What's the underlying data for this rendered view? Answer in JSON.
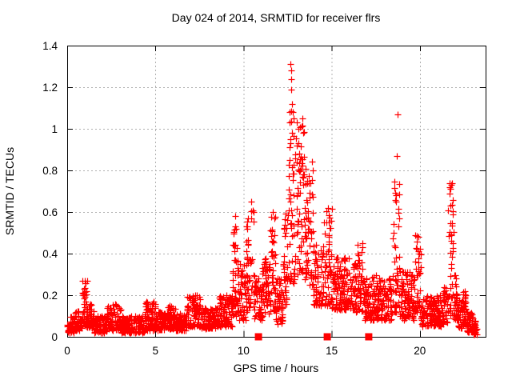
{
  "figure": {
    "title": "Day 024 of 2014, SRMTID for receiver flrs",
    "xlabel": "GPS time / hours",
    "ylabel": "SRMTID / TECUs"
  },
  "colors": {
    "marker": "#ff0000",
    "grid": "#b0b0b0",
    "axis": "#000000",
    "background": "#ffffff",
    "text": "#000000"
  },
  "chart_data": {
    "type": "scatter",
    "title": "Day 024 of 2014, SRMTID for receiver flrs",
    "xlabel": "GPS time / hours",
    "ylabel": "SRMTID / TECUs",
    "xlim": [
      0,
      23.73
    ],
    "ylim": [
      0,
      1.4
    ],
    "x_ticks": [
      0,
      5,
      10,
      15,
      20
    ],
    "y_ticks": [
      0,
      0.2,
      0.4,
      0.6,
      0.8,
      1,
      1.2,
      1.4
    ],
    "y_tick_labels": [
      "0",
      "0.2",
      "0.4",
      "0.6",
      "0.8",
      "1",
      "1.2",
      "1.4"
    ],
    "grid": true,
    "legend": "none",
    "marker": "plus",
    "marker_color": "#ff0000",
    "series": [
      {
        "name": "SRMTID",
        "description": "Dense scatter of ~2700 points; represented as time-bin envelopes [t_start_hr, t_end_hr, value_min, value_max, n_points] plus explicit extreme points.",
        "envelope_bins": [
          [
            0.0,
            0.15,
            0.02,
            0.06,
            18
          ],
          [
            0.15,
            0.4,
            0.02,
            0.1,
            30
          ],
          [
            0.4,
            0.62,
            0.03,
            0.13,
            26
          ],
          [
            0.62,
            0.85,
            0.03,
            0.1,
            28
          ],
          [
            0.85,
            1.12,
            0.05,
            0.27,
            36
          ],
          [
            1.12,
            1.5,
            0.04,
            0.16,
            44
          ],
          [
            1.5,
            2.25,
            0.02,
            0.1,
            88
          ],
          [
            2.25,
            3.05,
            0.03,
            0.16,
            94
          ],
          [
            3.05,
            4.4,
            0.02,
            0.1,
            158
          ],
          [
            4.4,
            5.05,
            0.03,
            0.17,
            76
          ],
          [
            5.05,
            5.6,
            0.03,
            0.12,
            64
          ],
          [
            5.6,
            6.15,
            0.04,
            0.15,
            64
          ],
          [
            6.15,
            6.8,
            0.03,
            0.11,
            76
          ],
          [
            6.8,
            7.6,
            0.05,
            0.2,
            94
          ],
          [
            7.6,
            8.6,
            0.04,
            0.14,
            116
          ],
          [
            8.6,
            9.35,
            0.05,
            0.2,
            88
          ],
          [
            9.35,
            9.65,
            0.1,
            0.55,
            40
          ],
          [
            9.65,
            10.15,
            0.08,
            0.35,
            56
          ],
          [
            10.15,
            10.6,
            0.12,
            0.63,
            52
          ],
          [
            10.6,
            11.05,
            0.08,
            0.3,
            52
          ],
          [
            11.05,
            11.45,
            0.1,
            0.38,
            46
          ],
          [
            11.45,
            11.85,
            0.12,
            0.58,
            46
          ],
          [
            11.85,
            12.25,
            0.06,
            0.28,
            46
          ],
          [
            12.25,
            12.55,
            0.15,
            0.6,
            36
          ],
          [
            12.55,
            12.9,
            0.25,
            1.1,
            46
          ],
          [
            12.9,
            13.45,
            0.3,
            1.05,
            64
          ],
          [
            13.45,
            13.95,
            0.25,
            0.85,
            58
          ],
          [
            13.95,
            14.55,
            0.15,
            0.45,
            66
          ],
          [
            14.55,
            15.0,
            0.15,
            0.62,
            50
          ],
          [
            15.0,
            16.35,
            0.13,
            0.38,
            152
          ],
          [
            16.35,
            16.75,
            0.12,
            0.47,
            46
          ],
          [
            16.75,
            17.6,
            0.08,
            0.3,
            96
          ],
          [
            17.6,
            18.45,
            0.08,
            0.28,
            96
          ],
          [
            18.45,
            18.85,
            0.12,
            0.75,
            46
          ],
          [
            18.85,
            19.7,
            0.08,
            0.32,
            96
          ],
          [
            19.7,
            20.05,
            0.12,
            0.5,
            40
          ],
          [
            20.05,
            21.3,
            0.05,
            0.2,
            142
          ],
          [
            21.3,
            21.55,
            0.06,
            0.25,
            30
          ],
          [
            21.55,
            21.9,
            0.1,
            0.74,
            46
          ],
          [
            21.9,
            22.15,
            0.08,
            0.3,
            32
          ],
          [
            22.15,
            22.65,
            0.04,
            0.22,
            62
          ],
          [
            22.65,
            23.0,
            0.02,
            0.12,
            40
          ],
          [
            23.0,
            23.25,
            0.01,
            0.08,
            24
          ]
        ],
        "extreme_points": [
          [
            12.68,
            1.31
          ],
          [
            12.69,
            1.28
          ],
          [
            12.7,
            1.24
          ],
          [
            12.72,
            1.19
          ],
          [
            12.74,
            1.12
          ],
          [
            12.8,
            1.08
          ],
          [
            12.86,
            1.05
          ],
          [
            13.02,
            1.03
          ],
          [
            13.12,
            1.0
          ],
          [
            13.32,
            1.05
          ],
          [
            18.72,
            1.07
          ],
          [
            18.7,
            0.87
          ],
          [
            9.52,
            0.58
          ],
          [
            10.42,
            0.65
          ],
          [
            21.68,
            0.74
          ],
          [
            21.72,
            0.71
          ],
          [
            14.8,
            0.62
          ],
          [
            11.65,
            0.6
          ],
          [
            1.0,
            0.27
          ],
          [
            7.25,
            0.2
          ]
        ]
      }
    ],
    "event_markers": {
      "marker": "filled-square",
      "color": "#ff0000",
      "y": 0,
      "x": [
        10.85,
        14.75,
        17.1
      ]
    }
  }
}
